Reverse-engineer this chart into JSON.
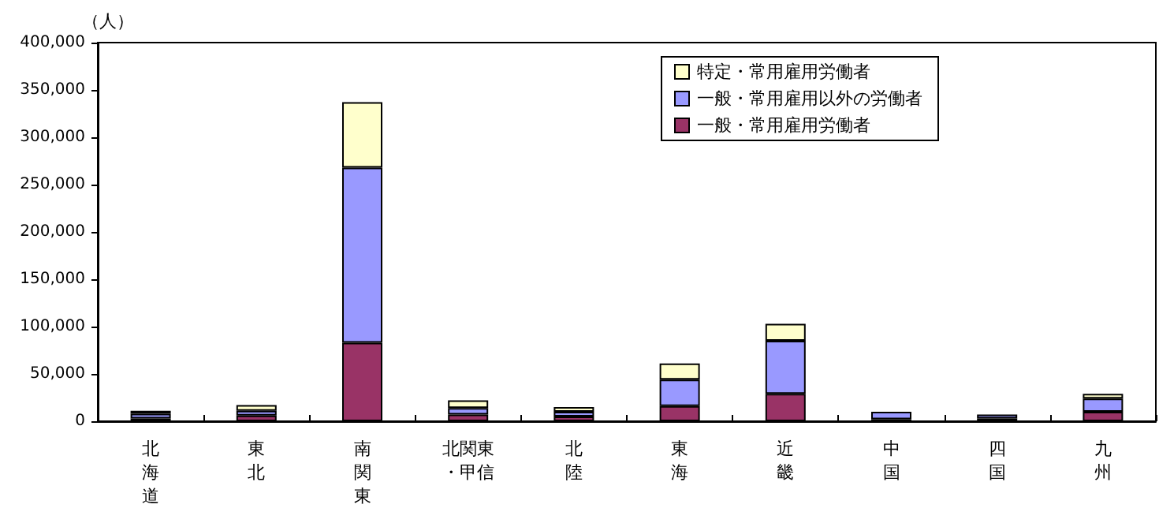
{
  "chart_data": {
    "type": "bar",
    "stacked": true,
    "ylabel": "（人）",
    "categories": [
      "北海道",
      "東北",
      "南関東",
      "北関東・甲信",
      "北陸",
      "東海",
      "近畿",
      "中国",
      "四国",
      "九州"
    ],
    "series": [
      {
        "name": "一般・常用雇用労働者",
        "color": "#993366",
        "values": [
          3000,
          6000,
          83000,
          7000,
          5000,
          16000,
          29000,
          2000,
          3000,
          10000
        ]
      },
      {
        "name": "一般・常用雇用以外の労働者",
        "color": "#9999ff",
        "values": [
          5000,
          5000,
          185000,
          7000,
          5000,
          28000,
          56000,
          8000,
          4000,
          14000
        ]
      },
      {
        "name": "特定・常用雇用労働者",
        "color": "#ffffcc",
        "values": [
          3000,
          6000,
          69000,
          8000,
          5000,
          17000,
          18000,
          null,
          null,
          5000
        ]
      }
    ],
    "ylim": [
      0,
      400000
    ],
    "yticks": [
      0,
      {
        "value": 50000,
        "label": "50,000"
      },
      {
        "value": 100000,
        "label": "100,000"
      },
      {
        "value": 150000,
        "label": "150,000"
      },
      {
        "value": 200000,
        "label": "200,000"
      },
      {
        "value": 250000,
        "label": "250,000"
      },
      {
        "value": 300000,
        "label": "300,000"
      },
      {
        "value": 350000,
        "label": "350,000"
      },
      {
        "value": 400000,
        "label": "400,000"
      }
    ],
    "grid": false,
    "legend": "top right"
  }
}
